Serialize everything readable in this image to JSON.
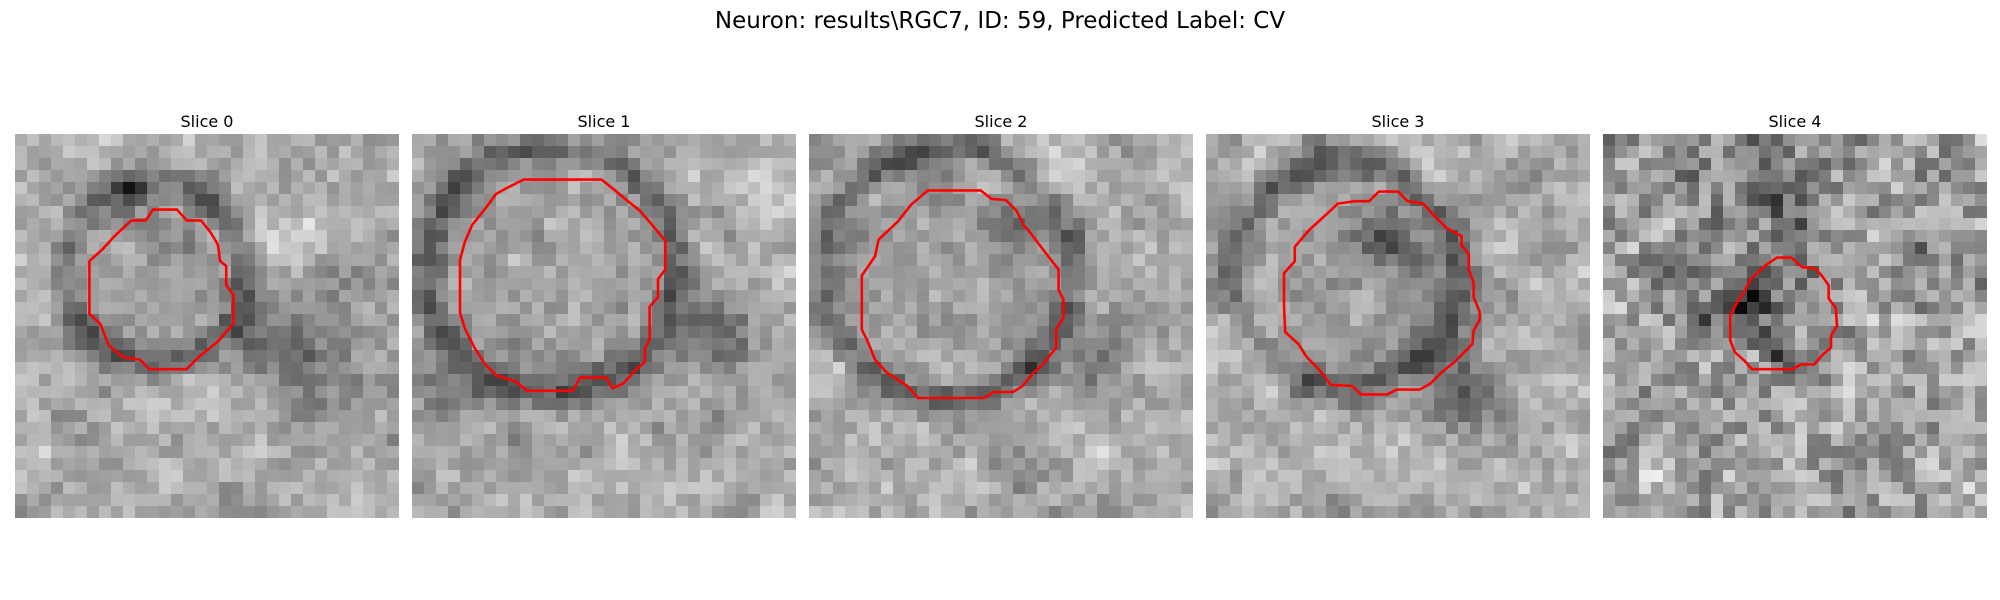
{
  "figure": {
    "title": "Neuron: results\\RGC7, ID: 59, Predicted Label: CV"
  },
  "panels": [
    {
      "title": "Slice 0",
      "seed": 11
    },
    {
      "title": "Slice 1",
      "seed": 23
    },
    {
      "title": "Slice 2",
      "seed": 37
    },
    {
      "title": "Slice 3",
      "seed": 41
    },
    {
      "title": "Slice 4",
      "seed": 53
    }
  ],
  "colors": {
    "contour": "#ff0000",
    "background": "#ffffff"
  },
  "grid_size": 32
}
